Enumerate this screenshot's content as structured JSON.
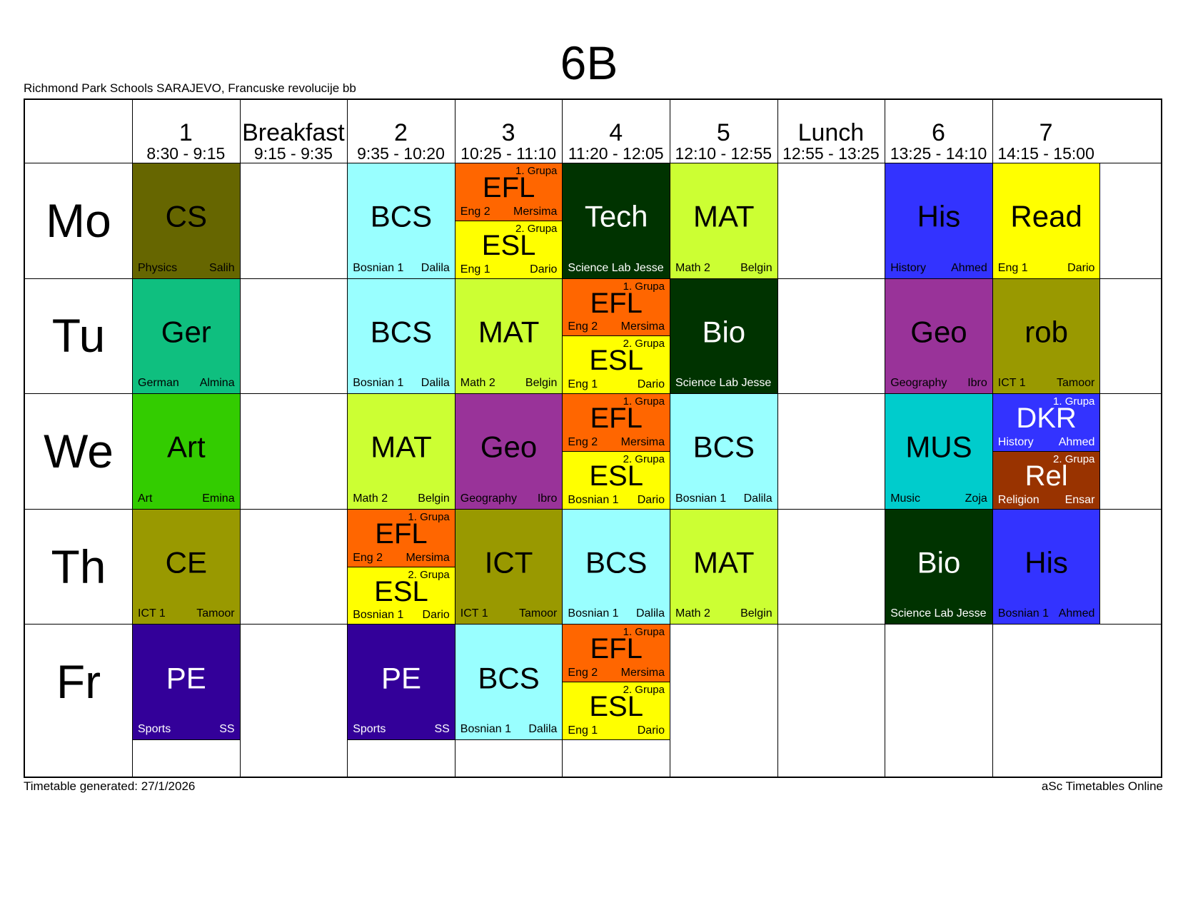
{
  "title": "6B",
  "school": "Richmond Park Schools SARAJEVO, Francuske revolucije bb",
  "footer": {
    "generated": "Timetable generated: 27/1/2026",
    "brand": "aSc Timetables Online"
  },
  "periods": [
    {
      "label": "1",
      "time": "8:30 - 9:15"
    },
    {
      "label": "Breakfast",
      "time": "9:15 - 9:35"
    },
    {
      "label": "2",
      "time": "9:35 - 10:20"
    },
    {
      "label": "3",
      "time": "10:25 - 11:10"
    },
    {
      "label": "4",
      "time": "11:20 - 12:05"
    },
    {
      "label": "5",
      "time": "12:10 - 12:55"
    },
    {
      "label": "Lunch",
      "time": "12:55 - 13:25"
    },
    {
      "label": "6",
      "time": "13:25 - 14:10"
    },
    {
      "label": "7",
      "time": "14:15 - 15:00"
    }
  ],
  "days": [
    "Mo",
    "Tu",
    "We",
    "Th",
    "Fr"
  ],
  "lessons": [
    {
      "day": 0,
      "col": 0,
      "subject": "CS",
      "room": "Physics",
      "teacher": "Salih",
      "color": "#666600",
      "text": "dark"
    },
    {
      "day": 0,
      "col": 2,
      "subject": "BCS",
      "room": "Bosnian 1",
      "teacher": "Dalila",
      "color": "#99ffff",
      "text": "dark"
    },
    {
      "day": 0,
      "col": 3,
      "half": "top",
      "group": "1. Grupa",
      "subject": "EFL",
      "room": "Eng 2",
      "teacher": "Mersima",
      "color": "#ff6600",
      "text": "dark"
    },
    {
      "day": 0,
      "col": 3,
      "half": "bottom",
      "group": "2. Grupa",
      "subject": "ESL",
      "room": "Eng 1",
      "teacher": "Dario",
      "color": "#ffff00",
      "text": "dark"
    },
    {
      "day": 0,
      "col": 4,
      "subject": "Tech",
      "room": "Science Lab Jesse",
      "teacher": "",
      "color": "#003300",
      "text": "light"
    },
    {
      "day": 0,
      "col": 5,
      "subject": "MAT",
      "room": "Math 2",
      "teacher": "Belgin",
      "color": "#ccff33",
      "text": "dark"
    },
    {
      "day": 0,
      "col": 7,
      "subject": "His",
      "room": "History",
      "teacher": "Ahmed",
      "color": "#3333ff",
      "text": "dark"
    },
    {
      "day": 0,
      "col": 8,
      "subject": "Read",
      "room": "Eng 1",
      "teacher": "Dario",
      "color": "#ffff00",
      "text": "dark"
    },
    {
      "day": 1,
      "col": 0,
      "subject": "Ger",
      "room": "German",
      "teacher": "Almina",
      "color": "#0fbf7f",
      "text": "dark"
    },
    {
      "day": 1,
      "col": 2,
      "subject": "BCS",
      "room": "Bosnian 1",
      "teacher": "Dalila",
      "color": "#99ffff",
      "text": "dark"
    },
    {
      "day": 1,
      "col": 3,
      "subject": "MAT",
      "room": "Math 2",
      "teacher": "Belgin",
      "color": "#ccff33",
      "text": "dark"
    },
    {
      "day": 1,
      "col": 4,
      "half": "top",
      "group": "1. Grupa",
      "subject": "EFL",
      "room": "Eng 2",
      "teacher": "Mersima",
      "color": "#ff6600",
      "text": "dark"
    },
    {
      "day": 1,
      "col": 4,
      "half": "bottom",
      "group": "2. Grupa",
      "subject": "ESL",
      "room": "Eng 1",
      "teacher": "Dario",
      "color": "#ffff00",
      "text": "dark"
    },
    {
      "day": 1,
      "col": 5,
      "subject": "Bio",
      "room": "Science Lab Jesse",
      "teacher": "",
      "color": "#003300",
      "text": "light"
    },
    {
      "day": 1,
      "col": 7,
      "subject": "Geo",
      "room": "Geography",
      "teacher": "Ibro",
      "color": "#993399",
      "text": "dark"
    },
    {
      "day": 1,
      "col": 8,
      "subject": "rob",
      "room": "ICT 1",
      "teacher": "Tamoor",
      "color": "#999900",
      "text": "dark"
    },
    {
      "day": 2,
      "col": 0,
      "subject": "Art",
      "room": "Art",
      "teacher": "Emina",
      "color": "#33cc00",
      "text": "dark"
    },
    {
      "day": 2,
      "col": 2,
      "subject": "MAT",
      "room": "Math 2",
      "teacher": "Belgin",
      "color": "#ccff33",
      "text": "dark"
    },
    {
      "day": 2,
      "col": 3,
      "subject": "Geo",
      "room": "Geography",
      "teacher": "Ibro",
      "color": "#993399",
      "text": "dark"
    },
    {
      "day": 2,
      "col": 4,
      "half": "top",
      "group": "1. Grupa",
      "subject": "EFL",
      "room": "Eng 2",
      "teacher": "Mersima",
      "color": "#ff6600",
      "text": "dark"
    },
    {
      "day": 2,
      "col": 4,
      "half": "bottom",
      "group": "2. Grupa",
      "subject": "ESL",
      "room": "Bosnian 1",
      "teacher": "Dario",
      "color": "#ffff00",
      "text": "dark"
    },
    {
      "day": 2,
      "col": 5,
      "subject": "BCS",
      "room": "Bosnian 1",
      "teacher": "Dalila",
      "color": "#99ffff",
      "text": "dark"
    },
    {
      "day": 2,
      "col": 7,
      "subject": "MUS",
      "room": "Music",
      "teacher": "Zoja",
      "color": "#00cccc",
      "text": "dark"
    },
    {
      "day": 2,
      "col": 8,
      "half": "top",
      "group": "1. Grupa",
      "subject": "DKR",
      "room": "History",
      "teacher": "Ahmed",
      "color": "#3333ff",
      "text": "light"
    },
    {
      "day": 2,
      "col": 8,
      "half": "bottom",
      "group": "2. Grupa",
      "subject": "Rel",
      "room": "Religion",
      "teacher": "Ensar",
      "color": "#993300",
      "text": "light"
    },
    {
      "day": 3,
      "col": 0,
      "subject": "CE",
      "room": "ICT 1",
      "teacher": "Tamoor",
      "color": "#999900",
      "text": "dark"
    },
    {
      "day": 3,
      "col": 2,
      "half": "top",
      "group": "1. Grupa",
      "subject": "EFL",
      "room": "Eng 2",
      "teacher": "Mersima",
      "color": "#ff6600",
      "text": "dark"
    },
    {
      "day": 3,
      "col": 2,
      "half": "bottom",
      "group": "2. Grupa",
      "subject": "ESL",
      "room": "Bosnian 1",
      "teacher": "Dario",
      "color": "#ffff00",
      "text": "dark"
    },
    {
      "day": 3,
      "col": 3,
      "subject": "ICT",
      "room": "ICT 1",
      "teacher": "Tamoor",
      "color": "#999900",
      "text": "dark"
    },
    {
      "day": 3,
      "col": 4,
      "subject": "BCS",
      "room": "Bosnian 1",
      "teacher": "Dalila",
      "color": "#99ffff",
      "text": "dark"
    },
    {
      "day": 3,
      "col": 5,
      "subject": "MAT",
      "room": "Math 2",
      "teacher": "Belgin",
      "color": "#ccff33",
      "text": "dark"
    },
    {
      "day": 3,
      "col": 7,
      "subject": "Bio",
      "room": "Science Lab Jesse",
      "teacher": "",
      "color": "#003300",
      "text": "light"
    },
    {
      "day": 3,
      "col": 8,
      "subject": "His",
      "room": "Bosnian 1",
      "teacher": "Ahmed",
      "color": "#3333ff",
      "text": "dark"
    },
    {
      "day": 4,
      "col": 0,
      "subject": "PE",
      "room": "Sports",
      "teacher": "SS",
      "color": "#330099",
      "text": "light"
    },
    {
      "day": 4,
      "col": 2,
      "subject": "PE",
      "room": "Sports",
      "teacher": "SS",
      "color": "#330099",
      "text": "light"
    },
    {
      "day": 4,
      "col": 3,
      "subject": "BCS",
      "room": "Bosnian 1",
      "teacher": "Dalila",
      "color": "#99ffff",
      "text": "dark"
    },
    {
      "day": 4,
      "col": 4,
      "half": "top",
      "group": "1. Grupa",
      "subject": "EFL",
      "room": "Eng 2",
      "teacher": "Mersima",
      "color": "#ff6600",
      "text": "dark"
    },
    {
      "day": 4,
      "col": 4,
      "half": "bottom",
      "group": "2. Grupa",
      "subject": "ESL",
      "room": "Eng 1",
      "teacher": "Dario",
      "color": "#ffff00",
      "text": "dark"
    }
  ]
}
